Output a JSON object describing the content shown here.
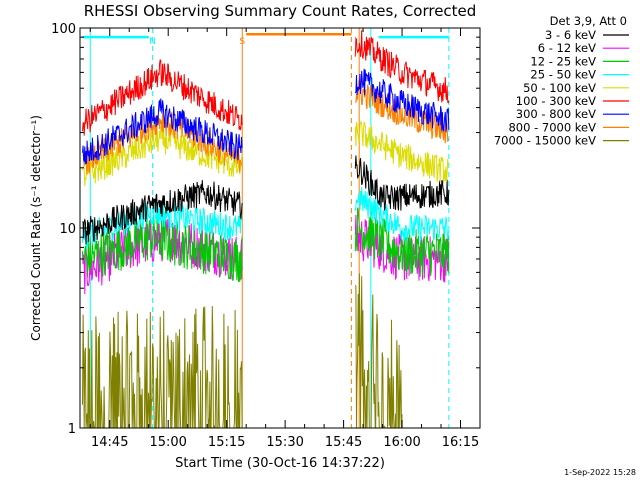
{
  "chart_data": {
    "type": "line",
    "title": "RHESSI Observing Summary Count Rates, Corrected",
    "xlabel": "Start Time (30-Oct-16 14:37:22)",
    "ylabel": "Corrected Count Rate (s⁻¹ detector⁻¹)",
    "yscale": "log",
    "ylim": [
      1,
      100
    ],
    "xlim": [
      "14:37:22",
      "16:20:00"
    ],
    "x_ticks": [
      "14:45",
      "15:00",
      "15:15",
      "15:30",
      "15:45",
      "16:00",
      "16:15"
    ],
    "y_ticks": [
      "1",
      "10",
      "100"
    ],
    "legend_title": "Det 3,9, Att 0",
    "legend_position": "right-outside",
    "timestamp": "1-Sep-2022 15:28",
    "markers": [
      {
        "label": "N",
        "time": "14:56",
        "color": "#00ffff"
      },
      {
        "label": "S",
        "time": "15:19",
        "color": "#ff8000"
      }
    ],
    "vertical_lines": [
      {
        "time": "14:40",
        "color": "#00ffff",
        "style": "solid"
      },
      {
        "time": "14:56",
        "color": "#00ffff",
        "style": "dashed"
      },
      {
        "time": "15:19",
        "color": "#ff8000",
        "style": "solid"
      },
      {
        "time": "15:47",
        "color": "#ff8000",
        "style": "dashed"
      },
      {
        "time": "15:49",
        "color": "#ff8000",
        "style": "solid"
      },
      {
        "time": "15:52",
        "color": "#00ffff",
        "style": "solid"
      },
      {
        "time": "16:12",
        "color": "#00ffff",
        "style": "dashed"
      }
    ],
    "horizontal_segments": [
      {
        "from": "14:38",
        "to": "14:55",
        "value": 90,
        "color": "#00ffff"
      },
      {
        "from": "15:20",
        "to": "15:47",
        "value": 93,
        "color": "#ff8000"
      },
      {
        "from": "15:54",
        "to": "16:12",
        "value": 90,
        "color": "#00ffff"
      }
    ],
    "series": [
      {
        "name": "3 - 6 keV",
        "color": "#000000",
        "points": [
          [
            "14:38",
            9.5
          ],
          [
            "14:56",
            13
          ],
          [
            "15:10",
            15
          ],
          [
            "15:18",
            13
          ],
          [
            "15:49",
            20
          ],
          [
            "15:55",
            14
          ],
          [
            "16:12",
            15
          ]
        ]
      },
      {
        "name": "6 - 12 keV",
        "color": "#ff00ff",
        "points": [
          [
            "14:38",
            6
          ],
          [
            "14:50",
            8
          ],
          [
            "15:00",
            9
          ],
          [
            "15:18",
            7
          ],
          [
            "15:49",
            9
          ],
          [
            "16:00",
            7
          ],
          [
            "16:12",
            7
          ]
        ]
      },
      {
        "name": "12 - 25 keV",
        "color": "#00c800",
        "points": [
          [
            "14:38",
            7
          ],
          [
            "14:56",
            9
          ],
          [
            "15:18",
            7
          ],
          [
            "15:49",
            10
          ],
          [
            "16:00",
            7.5
          ],
          [
            "16:12",
            7.5
          ]
        ]
      },
      {
        "name": "25 - 50 keV",
        "color": "#00ffff",
        "points": [
          [
            "14:38",
            9
          ],
          [
            "14:56",
            12
          ],
          [
            "15:18",
            10
          ],
          [
            "15:49",
            14
          ],
          [
            "16:00",
            10
          ],
          [
            "16:12",
            10
          ]
        ]
      },
      {
        "name": "50 - 100 keV",
        "color": "#dcdc00",
        "points": [
          [
            "14:38",
            18
          ],
          [
            "14:58",
            28
          ],
          [
            "15:18",
            20
          ],
          [
            "15:49",
            30
          ],
          [
            "16:00",
            23
          ],
          [
            "16:12",
            19
          ]
        ]
      },
      {
        "name": "100 - 300 keV",
        "color": "#ff0000",
        "points": [
          [
            "14:38",
            33
          ],
          [
            "14:58",
            60
          ],
          [
            "15:18",
            35
          ],
          [
            "15:49",
            85
          ],
          [
            "16:00",
            60
          ],
          [
            "16:12",
            48
          ]
        ]
      },
      {
        "name": "300 - 800 keV",
        "color": "#0000ff",
        "points": [
          [
            "14:38",
            23
          ],
          [
            "14:58",
            38
          ],
          [
            "15:18",
            25
          ],
          [
            "15:49",
            55
          ],
          [
            "16:00",
            42
          ],
          [
            "16:12",
            34
          ]
        ]
      },
      {
        "name": "800 - 7000 keV",
        "color": "#ff8000",
        "points": [
          [
            "14:38",
            21
          ],
          [
            "14:58",
            35
          ],
          [
            "15:18",
            22
          ],
          [
            "15:49",
            48
          ],
          [
            "16:00",
            37
          ],
          [
            "16:12",
            30
          ]
        ]
      },
      {
        "name": "7000 - 15000 keV",
        "color": "#808000",
        "points": [
          [
            "14:38",
            1.3
          ],
          [
            "15:18",
            1.5
          ],
          [
            "15:49",
            2.2
          ],
          [
            "16:00",
            1.2
          ]
        ]
      }
    ]
  }
}
